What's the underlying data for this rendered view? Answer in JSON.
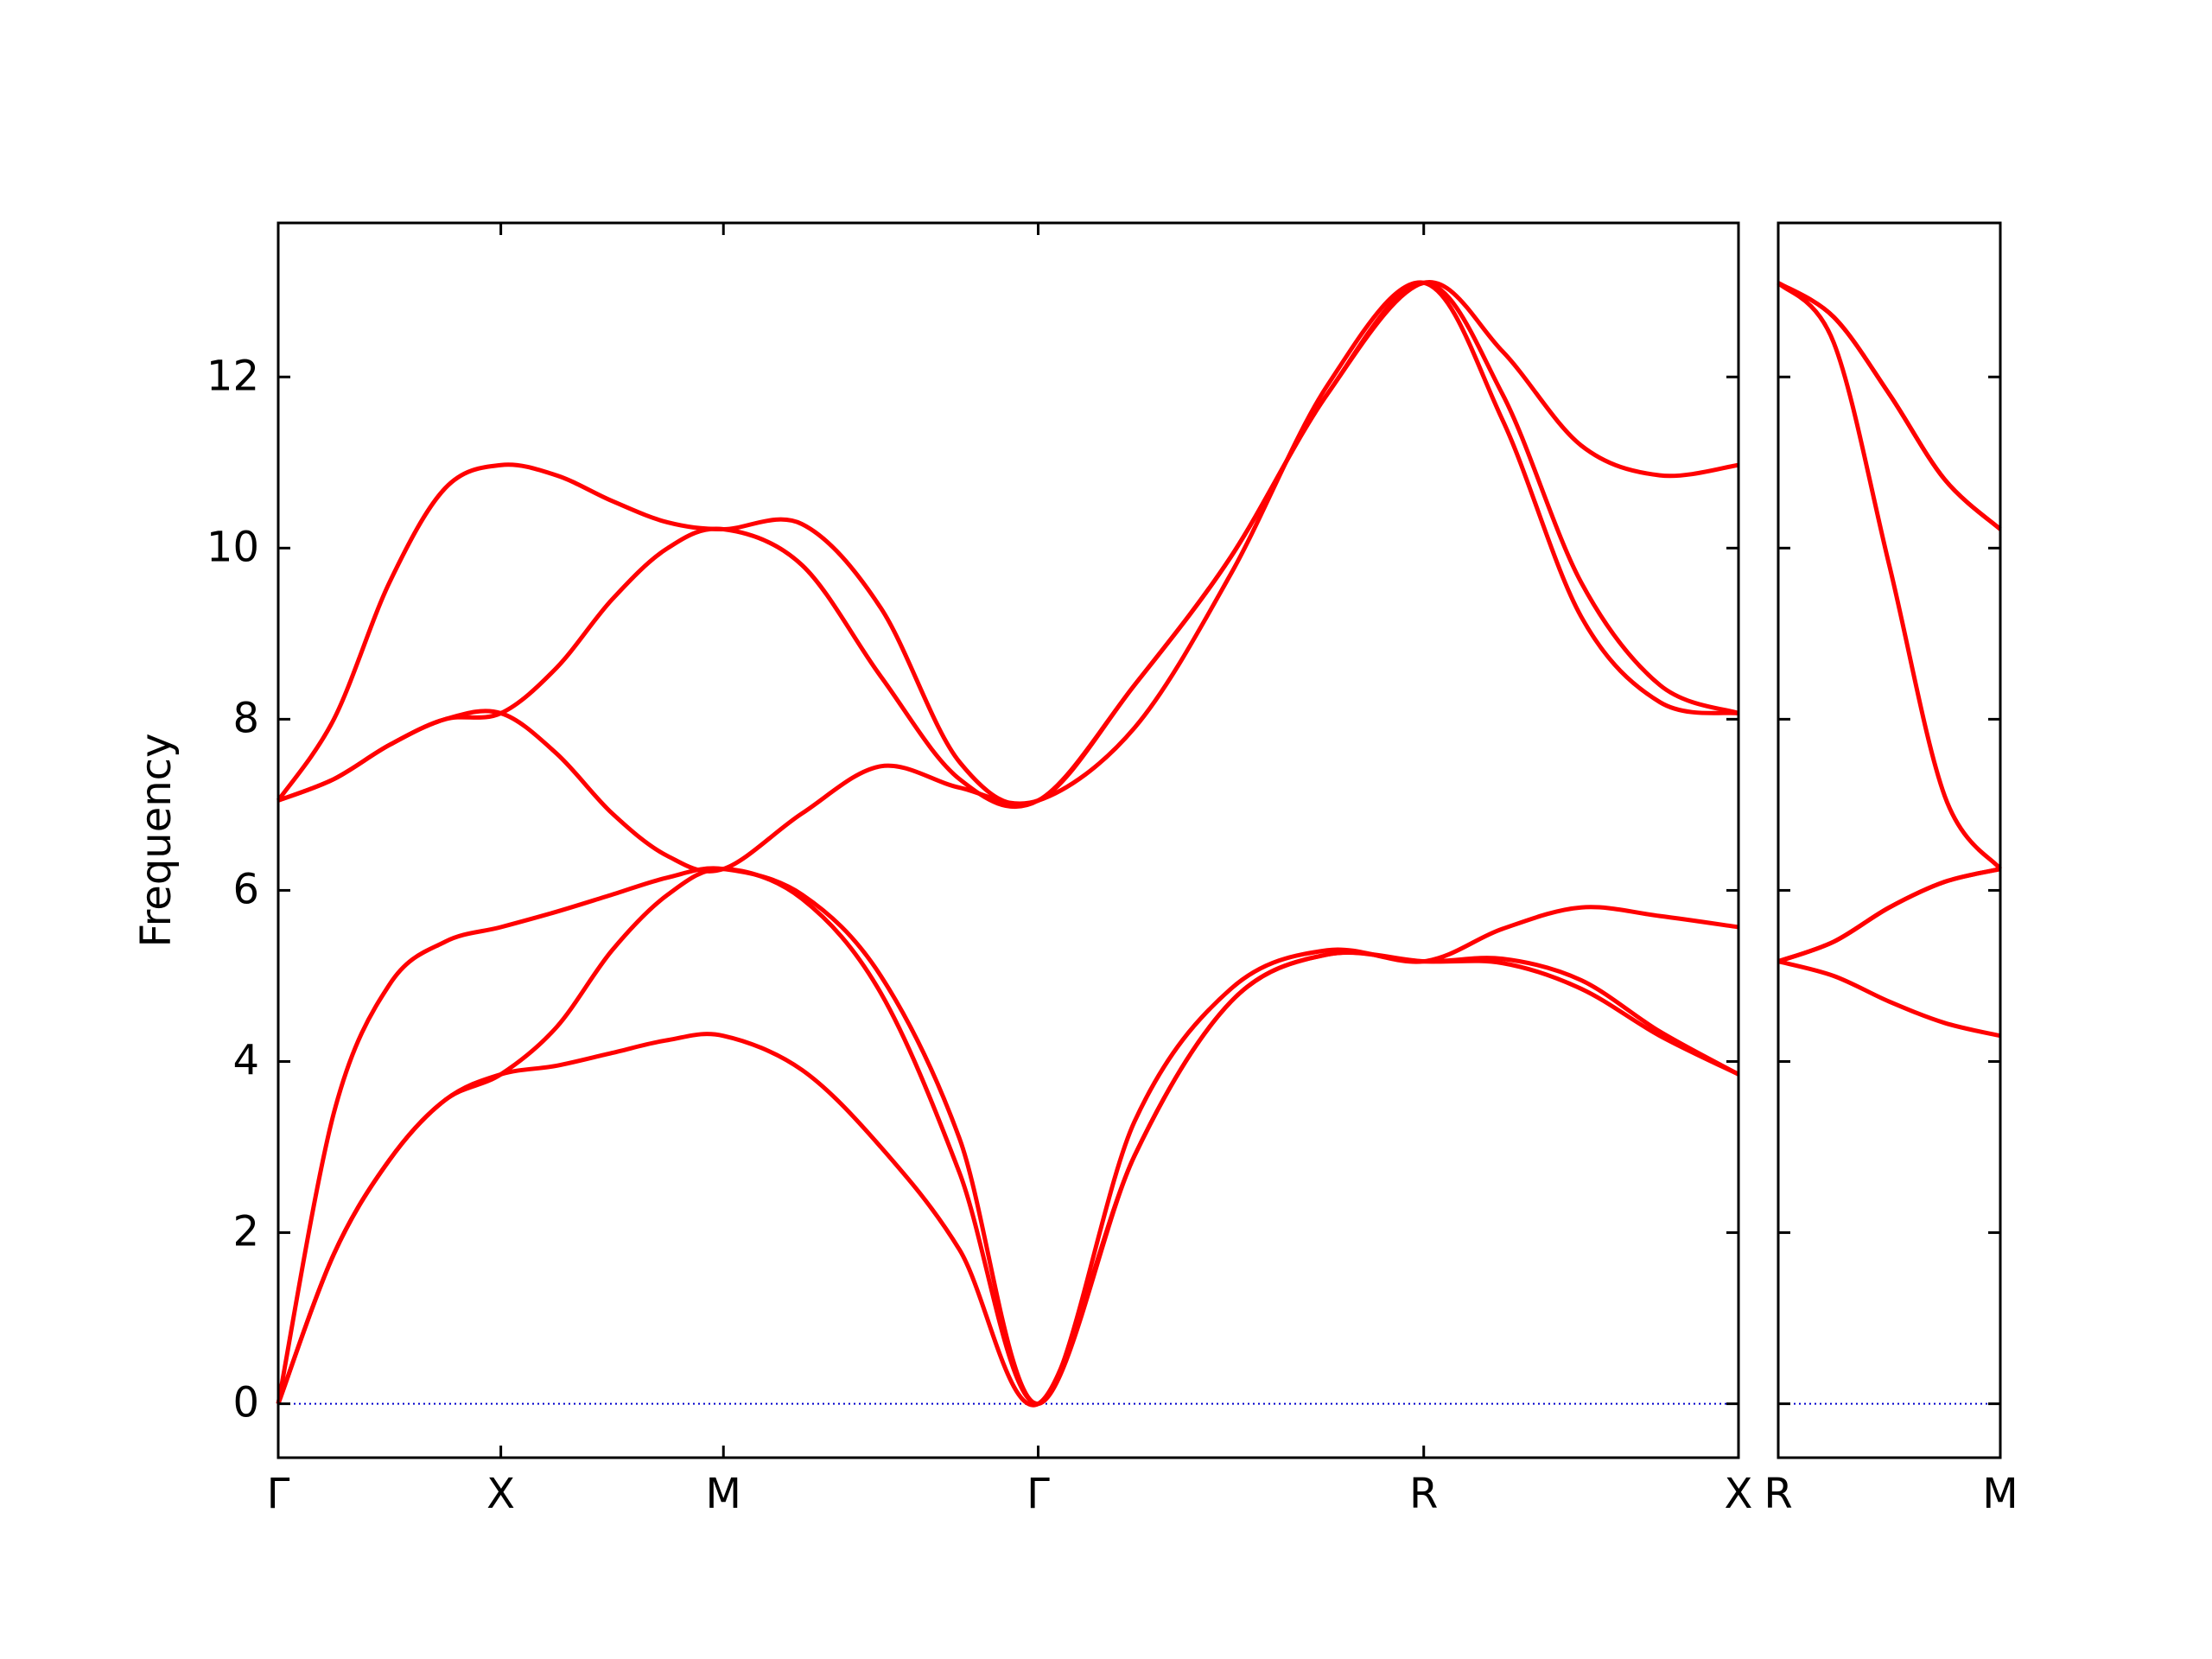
{
  "chart_data": [
    {
      "type": "line",
      "ylabel": "Frequency",
      "x": [
        0,
        0.25,
        0.5,
        0.75,
        1,
        1.25,
        1.5,
        1.75,
        2,
        2.3535,
        2.707,
        3.0605,
        3.414,
        3.847,
        4.28,
        4.713,
        5.146,
        5.4995,
        5.853,
        6.2065,
        6.56
      ],
      "xlim": [
        0,
        6.56
      ],
      "xticks": [
        {
          "value": 0,
          "label": "Γ"
        },
        {
          "value": 1,
          "label": "X"
        },
        {
          "value": 2,
          "label": "M"
        },
        {
          "value": 3.414,
          "label": "Γ"
        },
        {
          "value": 5.146,
          "label": "R"
        },
        {
          "value": 6.56,
          "label": "X"
        }
      ],
      "ylim": [
        -0.63,
        13.8
      ],
      "yticks": [
        0,
        2,
        4,
        6,
        8,
        10,
        12
      ],
      "ytick_labels": true,
      "reference_line": {
        "value": 0,
        "color": "#0000cc"
      },
      "series": [
        {
          "color": "#ff0000",
          "values": [
            0,
            1.75,
            2.85,
            3.55,
            3.85,
            3.95,
            4.1,
            4.25,
            4.3,
            3.9,
            3.0,
            1.8,
            0,
            2.9,
            4.7,
            5.25,
            5.17,
            5.15,
            4.85,
            4.3,
            3.85
          ]
        },
        {
          "color": "#ff0000",
          "values": [
            0,
            1.75,
            2.85,
            3.55,
            3.85,
            4.4,
            5.3,
            5.95,
            6.25,
            5.9,
            4.8,
            2.7,
            0,
            2.9,
            4.7,
            5.25,
            5.17,
            5.2,
            4.95,
            4.35,
            3.85
          ]
        },
        {
          "color": "#ff0000",
          "values": [
            0,
            3.4,
            4.9,
            5.4,
            5.57,
            5.75,
            5.95,
            6.15,
            6.25,
            5.95,
            5.0,
            3.1,
            0,
            3.3,
            4.85,
            5.3,
            5.17,
            5.55,
            5.8,
            5.7,
            5.57
          ]
        },
        {
          "color": "#ff0000",
          "values": [
            7.05,
            7.3,
            7.7,
            8.0,
            8.07,
            7.6,
            6.9,
            6.4,
            6.25,
            6.9,
            7.45,
            7.2,
            7.05,
            7.9,
            9.7,
            11.9,
            13.1,
            11.5,
            9.2,
            8.2,
            8.07
          ]
        },
        {
          "color": "#ff0000",
          "values": [
            7.05,
            7.3,
            7.7,
            8.0,
            8.07,
            8.6,
            9.4,
            10.0,
            10.22,
            9.8,
            8.5,
            7.3,
            7.05,
            8.4,
            9.9,
            11.8,
            13.1,
            11.8,
            9.6,
            8.4,
            8.07
          ]
        },
        {
          "color": "#ff0000",
          "values": [
            7.05,
            8.0,
            9.6,
            10.7,
            10.97,
            10.85,
            10.55,
            10.3,
            10.22,
            10.28,
            9.3,
            7.5,
            7.05,
            8.4,
            9.9,
            11.8,
            13.1,
            12.3,
            11.2,
            10.85,
            10.97
          ]
        }
      ]
    },
    {
      "type": "line",
      "x": [
        0,
        0.25,
        0.5,
        0.75,
        1
      ],
      "xlim": [
        0,
        1
      ],
      "xticks": [
        {
          "value": 0,
          "label": "R"
        },
        {
          "value": 1,
          "label": "M"
        }
      ],
      "ylim": [
        -0.63,
        13.8
      ],
      "yticks": [
        0,
        2,
        4,
        6,
        8,
        10,
        12
      ],
      "ytick_labels": false,
      "reference_line": {
        "value": 0,
        "color": "#0000cc"
      },
      "series": [
        {
          "color": "#ff0000",
          "values": [
            5.17,
            5.0,
            4.7,
            4.45,
            4.3
          ]
        },
        {
          "color": "#ff0000",
          "values": [
            5.17,
            5.4,
            5.8,
            6.1,
            6.25
          ]
        },
        {
          "color": "#ff0000",
          "values": [
            5.17,
            5.4,
            5.8,
            6.1,
            6.25
          ]
        },
        {
          "color": "#ff0000",
          "values": [
            13.1,
            12.4,
            9.8,
            7.1,
            6.25
          ]
        },
        {
          "color": "#ff0000",
          "values": [
            13.1,
            12.7,
            11.8,
            10.8,
            10.22
          ]
        },
        {
          "color": "#ff0000",
          "values": [
            13.1,
            12.7,
            11.8,
            10.8,
            10.22
          ]
        }
      ]
    }
  ]
}
